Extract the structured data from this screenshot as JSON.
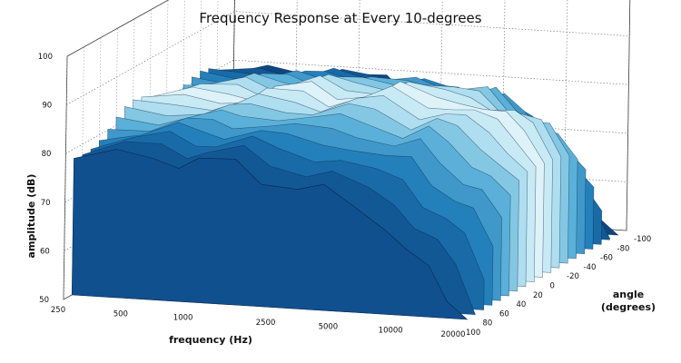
{
  "chart_data": {
    "type": "surface3d",
    "title": "Frequency Response at Every 10-degrees",
    "xlabel": "frequency (Hz)",
    "ylabel": "amplitude (dB)",
    "zlabel_line1": "angle",
    "zlabel_line2": "(degrees)",
    "x_ticks": [
      "250",
      "500",
      "1000",
      "2500",
      "5000",
      "10000",
      "20000"
    ],
    "y_ticks": [
      "50",
      "60",
      "70",
      "80",
      "90",
      "100"
    ],
    "z_ticks": [
      "-100",
      "-80",
      "-60",
      "-40",
      "-20",
      "0",
      "20",
      "40",
      "60",
      "80",
      "100"
    ],
    "xlim": [
      250,
      20000
    ],
    "x_scale": "log",
    "ylim": [
      50,
      100
    ],
    "zlim": [
      -100,
      100
    ],
    "angles": [
      -90,
      -80,
      -70,
      -60,
      -50,
      -40,
      -30,
      -20,
      -10,
      0,
      10,
      20,
      30,
      40,
      50,
      60,
      70,
      80,
      90
    ],
    "frequencies": [
      250,
      400,
      600,
      800,
      1000,
      1500,
      2000,
      3000,
      4000,
      6000,
      8000,
      10000,
      13000,
      16000,
      20000
    ],
    "amplitude_on_axis": [
      82,
      83,
      84,
      84,
      85,
      86,
      85,
      86,
      87,
      85,
      86,
      84,
      82,
      80,
      75
    ],
    "grid": true,
    "colormap": [
      "#0b2a5c",
      "#0f4f8c",
      "#1e7bb8",
      "#5ab0d8",
      "#b8e4f2",
      "#e8f7fb"
    ]
  }
}
